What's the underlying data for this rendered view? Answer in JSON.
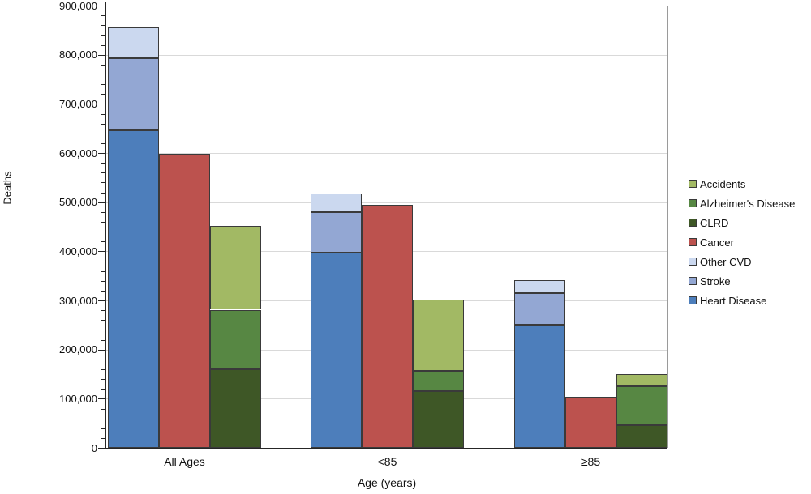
{
  "chart_data": {
    "type": "bar",
    "subtype": "grouped-stacked",
    "title": "",
    "xlabel": "Age (years)",
    "ylabel": "Deaths",
    "categories": [
      "All Ages",
      "<85",
      "≥85"
    ],
    "ylim": [
      0,
      900000
    ],
    "ytick_interval": 100000,
    "minor_tick_interval": 20000,
    "grid": true,
    "legend_position": "right",
    "ytick_labels": [
      "0",
      "100,000",
      "200,000",
      "300,000",
      "400,000",
      "500,000",
      "600,000",
      "700,000",
      "800,000",
      "900,000"
    ],
    "stacks": [
      {
        "name": "cvd-stack",
        "segments": [
          {
            "label": "Heart Disease",
            "color": "#4D7EBB",
            "values": [
              647000,
              397000,
              251000
            ]
          },
          {
            "label": "Stroke",
            "color": "#93A7D3",
            "values": [
              146000,
              82000,
              64000
            ]
          },
          {
            "label": "Other CVD",
            "color": "#CBD8EF",
            "values": [
              65000,
              39000,
              26000
            ]
          }
        ]
      },
      {
        "name": "cancer-bar",
        "segments": [
          {
            "label": "Cancer",
            "color": "#BC524E",
            "values": [
              599000,
              495000,
              104000
            ]
          }
        ]
      },
      {
        "name": "other-causes-stack",
        "segments": [
          {
            "label": "CLRD",
            "color": "#3E5726",
            "values": [
              160000,
              115000,
              46000
            ]
          },
          {
            "label": "Alzheimer's Disease",
            "color": "#578743",
            "values": [
              121000,
              42000,
              80000
            ]
          },
          {
            "label": "Accidents",
            "color": "#A2B964",
            "values": [
              170000,
              145000,
              24000
            ]
          }
        ]
      }
    ],
    "legend": [
      {
        "label": "Accidents",
        "color": "#A2B964"
      },
      {
        "label": "Alzheimer's Disease",
        "color": "#578743"
      },
      {
        "label": "CLRD",
        "color": "#3E5726"
      },
      {
        "label": "Cancer",
        "color": "#BC524E"
      },
      {
        "label": "Other CVD",
        "color": "#CBD8EF"
      },
      {
        "label": "Stroke",
        "color": "#93A7D3"
      },
      {
        "label": "Heart Disease",
        "color": "#4D7EBB"
      }
    ]
  }
}
